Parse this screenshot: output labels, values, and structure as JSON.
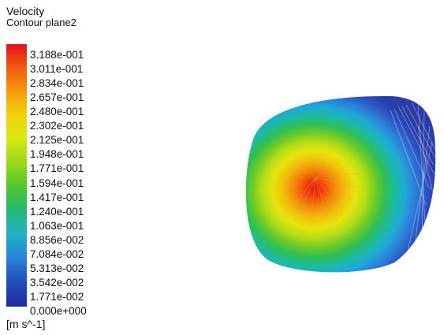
{
  "legend": {
    "title": "Velocity",
    "subtitle": "Contour plane2",
    "units": "[m s^-1]",
    "ticks": [
      "3.188e-001",
      "3.011e-001",
      "2.834e-001",
      "2.657e-001",
      "2.480e-001",
      "2.302e-001",
      "2.125e-001",
      "1.948e-001",
      "1.771e-001",
      "1.594e-001",
      "1.417e-001",
      "1.240e-001",
      "1.063e-001",
      "8.856e-002",
      "7.084e-002",
      "5.313e-002",
      "3.542e-002",
      "1.771e-002",
      "0.000e+000"
    ]
  },
  "colors": {
    "scale": [
      "#e0141e",
      "#f05a10",
      "#f59a0a",
      "#f2d20c",
      "#d6ea10",
      "#9ad81c",
      "#52c72d",
      "#26b873",
      "#1eb3c4",
      "#2a85d8",
      "#2450c0",
      "#1a2f96"
    ]
  }
}
